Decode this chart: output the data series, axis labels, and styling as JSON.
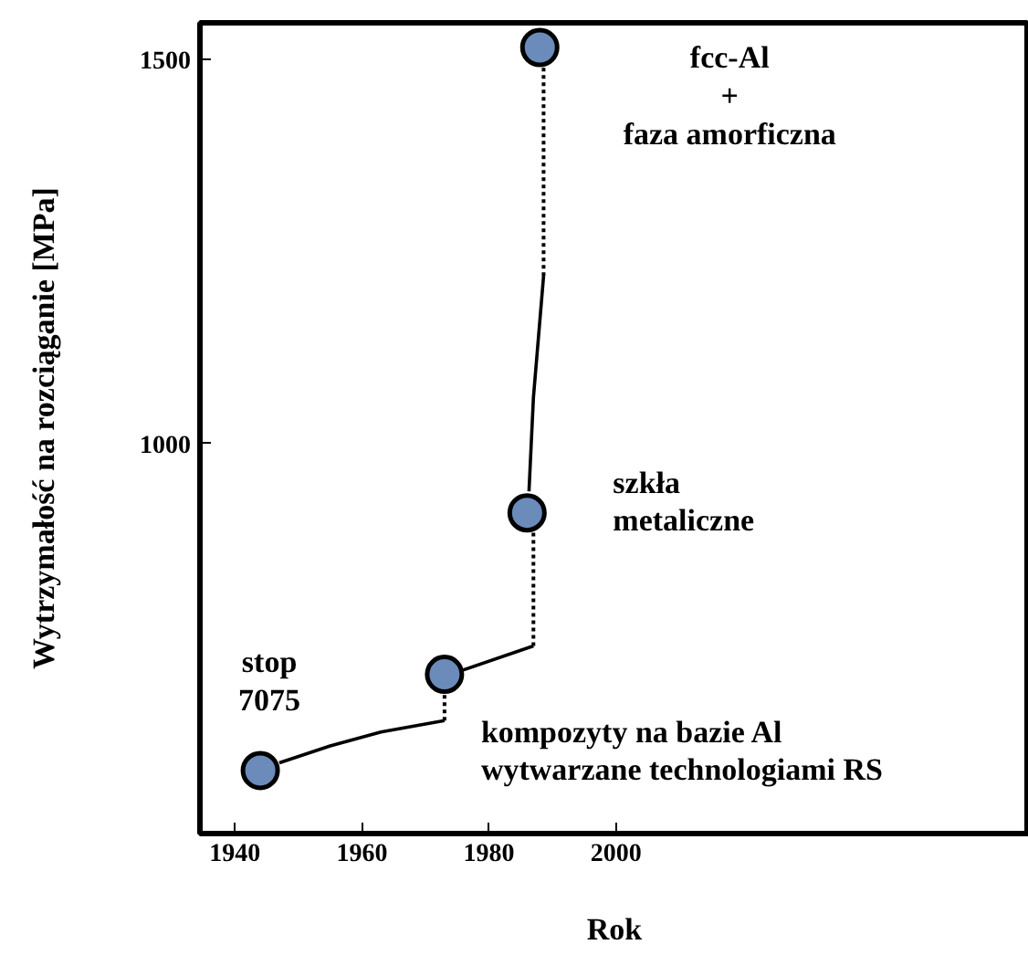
{
  "chart_data": {
    "type": "line",
    "xlabel": "Rok",
    "ylabel": "Wytrzymałość na rozciąganie [MPa]",
    "xlim": [
      1934.5,
      2065
    ],
    "xticks": [
      1940,
      1960,
      1980,
      2000
    ],
    "ylim": [
      493,
      1547
    ],
    "yticks": [
      1000,
      1500
    ],
    "grid": false,
    "series": [
      {
        "line_style": "solid",
        "color": "#000000",
        "x": [
          1947,
          1955,
          1963,
          1973
        ],
        "values": [
          585,
          607,
          625,
          640
        ]
      },
      {
        "line_style": "dotted",
        "color": "#000000",
        "x": [
          1973,
          1973
        ],
        "values": [
          640,
          700
        ]
      },
      {
        "line_style": "solid",
        "color": "#000000",
        "x": [
          1975,
          1987
        ],
        "values": [
          703,
          737
        ]
      },
      {
        "line_style": "dotted",
        "color": "#000000",
        "x": [
          1987,
          1987
        ],
        "values": [
          737,
          910
        ]
      },
      {
        "line_style": "solid",
        "color": "#000000",
        "x": [
          1986.3,
          1987,
          1988.6
        ],
        "values": [
          938,
          1060,
          1218
        ]
      },
      {
        "line_style": "dotted",
        "color": "#000000",
        "x": [
          1988.6,
          1988.6
        ],
        "values": [
          1218,
          1515
        ]
      },
      {
        "type": "scatter",
        "marker": "circle",
        "color": "#6b8cba",
        "x": [
          1944,
          1973,
          1986,
          1988
        ],
        "values": [
          575,
          700,
          910,
          1515
        ]
      }
    ],
    "annotations": [
      {
        "text": "fcc-Al\n+\nfaza amorficzna",
        "x": 1988,
        "y": 1515
      },
      {
        "text": "szkła\nmetaliczne",
        "x": 1986,
        "y": 910
      },
      {
        "text": "stop\n7075",
        "x": 1944,
        "y": 575
      },
      {
        "text": "kompozyty na bazie Al\nwytwarzane technologiami RS",
        "x": 1973,
        "y": 700
      }
    ]
  }
}
